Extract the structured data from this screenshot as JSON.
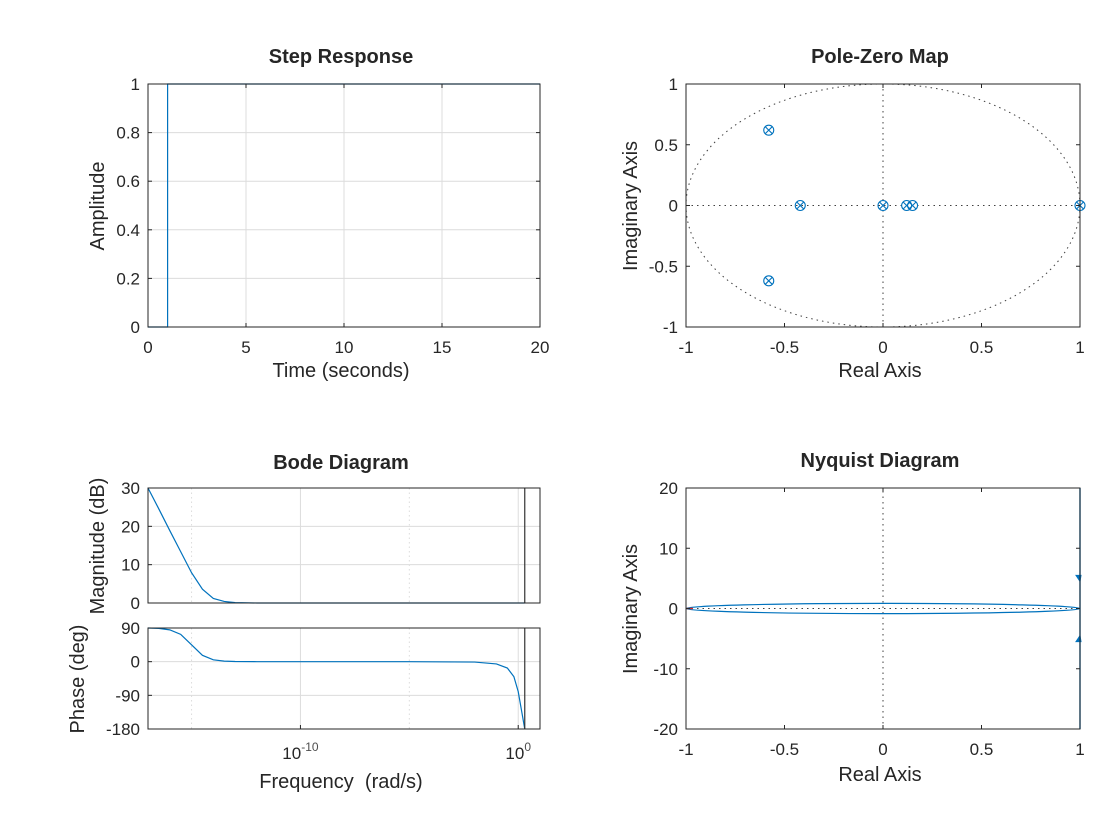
{
  "colors": {
    "series": "#0072BD",
    "axes": "#262626",
    "grid": "#dcdcdc",
    "nyquist_marker": "#d62728"
  },
  "chart_data": [
    {
      "id": "step",
      "type": "line",
      "title": "Step Response",
      "xlabel": "Time (seconds)",
      "ylabel": "Amplitude",
      "xlim": [
        0,
        20
      ],
      "ylim": [
        0,
        1
      ],
      "xticks": [
        0,
        5,
        10,
        15,
        20
      ],
      "xticklabels": [
        "0",
        "5",
        "10",
        "15",
        "20"
      ],
      "yticks": [
        0,
        0.2,
        0.4,
        0.6,
        0.8,
        1
      ],
      "yticklabels": [
        "0",
        "0.2",
        "0.4",
        "0.6",
        "0.8",
        "1"
      ],
      "grid": true,
      "series": [
        {
          "x": [
            0,
            1,
            1,
            20
          ],
          "y": [
            0,
            0,
            1,
            1
          ]
        }
      ]
    },
    {
      "id": "pzmap",
      "type": "scatter",
      "title": "Pole-Zero Map",
      "xlabel": "Real Axis",
      "ylabel": "Imaginary Axis",
      "xlim": [
        -1,
        1
      ],
      "ylim": [
        -1,
        1
      ],
      "xticks": [
        -1,
        -0.5,
        0,
        0.5,
        1
      ],
      "xticklabels": [
        "-1",
        "-0.5",
        "0",
        "0.5",
        "1"
      ],
      "yticks": [
        -1,
        -0.5,
        0,
        0.5,
        1
      ],
      "yticklabels": [
        "-1",
        "-0.5",
        "0",
        "0.5",
        "1"
      ],
      "grid": false,
      "unit_circle": true,
      "poles": [
        {
          "re": -0.58,
          "im": 0.62
        },
        {
          "re": -0.58,
          "im": -0.62
        },
        {
          "re": -0.42,
          "im": 0
        },
        {
          "re": 0,
          "im": 0
        },
        {
          "re": 0.12,
          "im": 0
        },
        {
          "re": 0.15,
          "im": 0
        },
        {
          "re": 1,
          "im": 0
        }
      ],
      "zeros": [
        {
          "re": -0.58,
          "im": 0.62
        },
        {
          "re": -0.58,
          "im": -0.62
        },
        {
          "re": -0.42,
          "im": 0
        },
        {
          "re": 0,
          "im": 0
        },
        {
          "re": 0.12,
          "im": 0
        },
        {
          "re": 0.15,
          "im": 0
        },
        {
          "re": 1,
          "im": 0
        }
      ]
    },
    {
      "id": "bode",
      "type": "line",
      "title": "Bode Diagram",
      "xlabel": "Frequency  (rad/s)",
      "xscale": "log",
      "xlim_log10": [
        -17,
        1
      ],
      "xticks_log10": [
        -10,
        0
      ],
      "xtick_base": "10",
      "xtick_exponents": [
        "-10",
        "0"
      ],
      "grid": true,
      "crossover_log10": 0.3,
      "magnitude": {
        "ylabel": "Magnitude (dB)",
        "ylim": [
          0,
          30
        ],
        "yticks": [
          0,
          10,
          20,
          30
        ],
        "yticklabels": [
          "0",
          "10",
          "20",
          "30"
        ],
        "x_log10": [
          -17,
          -16.5,
          -16,
          -15.5,
          -15,
          -14.5,
          -14,
          -13.5,
          -13,
          -12,
          -10,
          -5,
          0,
          0.3
        ],
        "y_db": [
          30,
          24.5,
          18.9,
          13.4,
          7.9,
          3.6,
          1.2,
          0.4,
          0.1,
          0,
          0,
          0,
          0,
          0
        ]
      },
      "phase": {
        "ylabel": "Phase (deg)",
        "ylim": [
          -180,
          90
        ],
        "yticks": [
          -180,
          -90,
          0,
          90
        ],
        "yticklabels": [
          "-180",
          "-90",
          "0",
          "90"
        ],
        "x_log10": [
          -17,
          -16.5,
          -16,
          -15.5,
          -15,
          -14.5,
          -14,
          -13.5,
          -13,
          -12,
          -10,
          -5,
          -2,
          -1,
          -0.5,
          -0.2,
          0,
          0.15,
          0.3
        ],
        "y_deg": [
          90,
          89,
          85,
          73,
          45,
          17,
          5,
          1.5,
          0.5,
          0,
          0,
          0,
          -1,
          -6,
          -17,
          -40,
          -80,
          -130,
          -180
        ]
      }
    },
    {
      "id": "nyquist",
      "type": "line",
      "title": "Nyquist Diagram",
      "xlabel": "Real Axis",
      "ylabel": "Imaginary Axis",
      "xlim": [
        -1,
        1
      ],
      "ylim": [
        -20,
        20
      ],
      "xticks": [
        -1,
        -0.5,
        0,
        0.5,
        1
      ],
      "xticklabels": [
        "-1",
        "-0.5",
        "0",
        "0.5",
        "1"
      ],
      "yticks": [
        -20,
        -10,
        0,
        10,
        20
      ],
      "yticklabels": [
        "-20",
        "-10",
        "0",
        "10",
        "20"
      ],
      "grid": false,
      "critical_point": {
        "re": -1,
        "im": 0
      },
      "contour_half_height": 0.85
    }
  ]
}
